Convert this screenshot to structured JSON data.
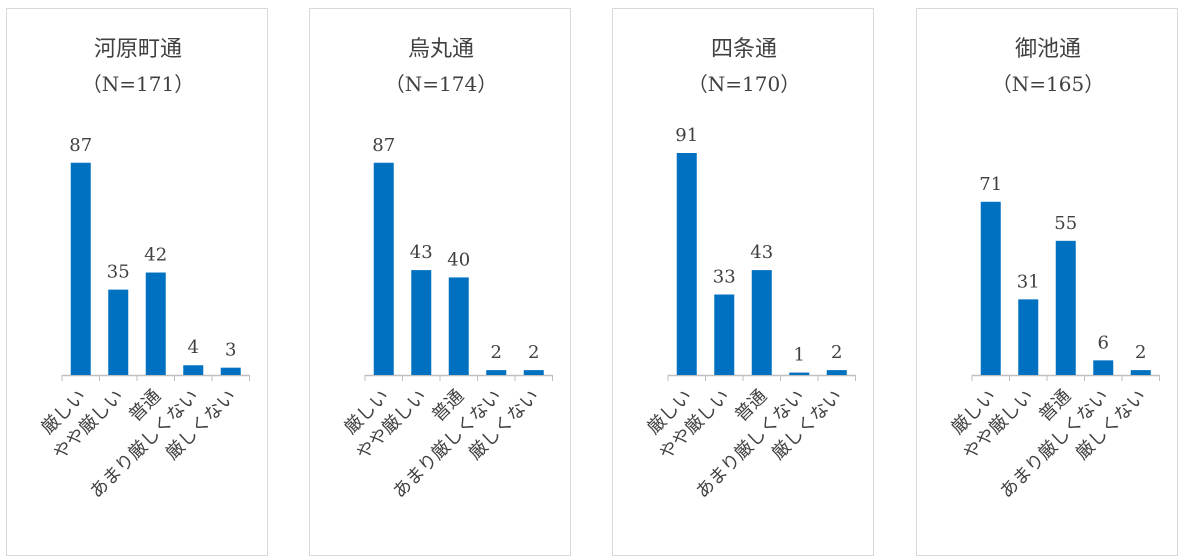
{
  "chart_data": [
    {
      "type": "bar",
      "title": "河原町通",
      "subtitle": "（N=171）",
      "categories": [
        "厳しい",
        "やや厳しい",
        "普通",
        "あまり厳しくない",
        "厳しくない"
      ],
      "values": [
        87,
        35,
        42,
        4,
        3
      ],
      "ylim": [
        0,
        91
      ],
      "grid": false,
      "color": "#0070C0"
    },
    {
      "type": "bar",
      "title": "烏丸通",
      "subtitle": "（N=174）",
      "categories": [
        "厳しい",
        "やや厳しい",
        "普通",
        "あまり厳しくない",
        "厳しくない"
      ],
      "values": [
        87,
        43,
        40,
        2,
        2
      ],
      "ylim": [
        0,
        91
      ],
      "grid": false,
      "color": "#0070C0"
    },
    {
      "type": "bar",
      "title": "四条通",
      "subtitle": "（N=170）",
      "categories": [
        "厳しい",
        "やや厳しい",
        "普通",
        "あまり厳しくない",
        "厳しくない"
      ],
      "values": [
        91,
        33,
        43,
        1,
        2
      ],
      "ylim": [
        0,
        91
      ],
      "grid": false,
      "color": "#0070C0"
    },
    {
      "type": "bar",
      "title": "御池通",
      "subtitle": "（N=165）",
      "categories": [
        "厳しい",
        "やや厳しい",
        "普通",
        "あまり厳しくない",
        "厳しくない"
      ],
      "values": [
        71,
        31,
        55,
        6,
        2
      ],
      "ylim": [
        0,
        91
      ],
      "grid": false,
      "color": "#0070C0"
    }
  ]
}
